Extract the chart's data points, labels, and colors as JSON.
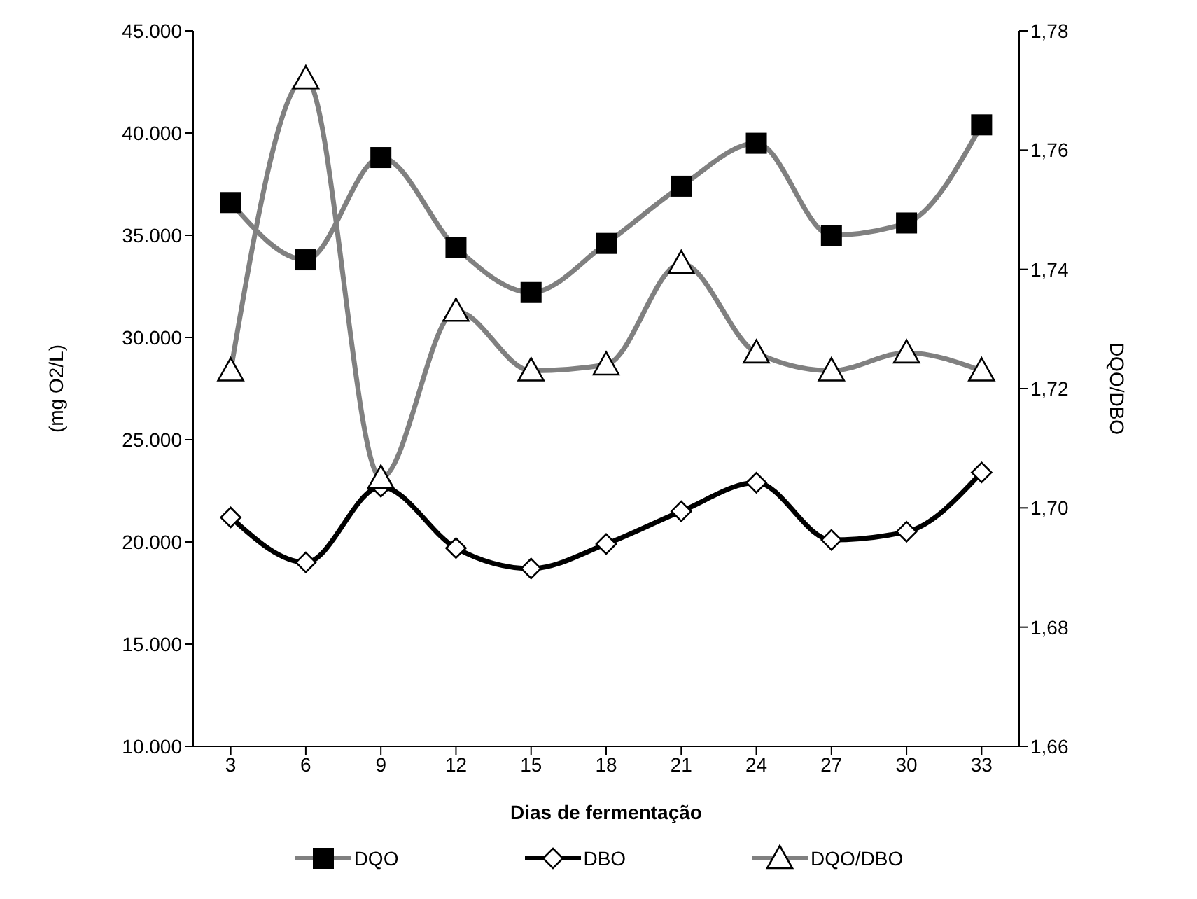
{
  "chart_data": {
    "type": "line",
    "xlabel": "Dias de fermentação",
    "ylabel": "(mg O2/L)",
    "y2label": "DQO/DBO",
    "categories": [
      "3",
      "6",
      "9",
      "12",
      "15",
      "18",
      "21",
      "24",
      "27",
      "30",
      "33"
    ],
    "series": [
      {
        "name": "DQO",
        "color": "#808080",
        "marker": "square",
        "values": [
          36600,
          33800,
          38800,
          34400,
          32200,
          34600,
          37400,
          39500,
          35000,
          35600,
          40400
        ]
      },
      {
        "name": "DBO",
        "color": "#000000",
        "marker": "diamond",
        "values": [
          21200,
          19000,
          22700,
          19700,
          18700,
          19900,
          21500,
          22900,
          20100,
          20500,
          23400
        ]
      },
      {
        "name": "DQO/DBO",
        "color": "#808080",
        "marker": "triangle",
        "axis": "y2",
        "values": [
          1.723,
          1.772,
          1.705,
          1.733,
          1.723,
          1.724,
          1.741,
          1.726,
          1.723,
          1.726,
          1.723
        ]
      }
    ],
    "ylim": [
      10000,
      45000
    ],
    "yticks": [
      {
        "value": 10000,
        "label": "10.000"
      },
      {
        "value": 15000,
        "label": "15.000"
      },
      {
        "value": 20000,
        "label": "20.000"
      },
      {
        "value": 25000,
        "label": "25.000"
      },
      {
        "value": 30000,
        "label": "30.000"
      },
      {
        "value": 35000,
        "label": "35.000"
      },
      {
        "value": 40000,
        "label": "40.000"
      },
      {
        "value": 45000,
        "label": "45.000"
      }
    ],
    "y2lim": [
      1.66,
      1.78
    ],
    "y2ticks": [
      {
        "value": 1.66,
        "label": "1,66"
      },
      {
        "value": 1.68,
        "label": "1,68"
      },
      {
        "value": 1.7,
        "label": "1,70"
      },
      {
        "value": 1.72,
        "label": "1,72"
      },
      {
        "value": 1.74,
        "label": "1,74"
      },
      {
        "value": 1.76,
        "label": "1,76"
      },
      {
        "value": 1.78,
        "label": "1,78"
      }
    ],
    "grid": false,
    "legend": "bottom",
    "line_style": "solid"
  }
}
